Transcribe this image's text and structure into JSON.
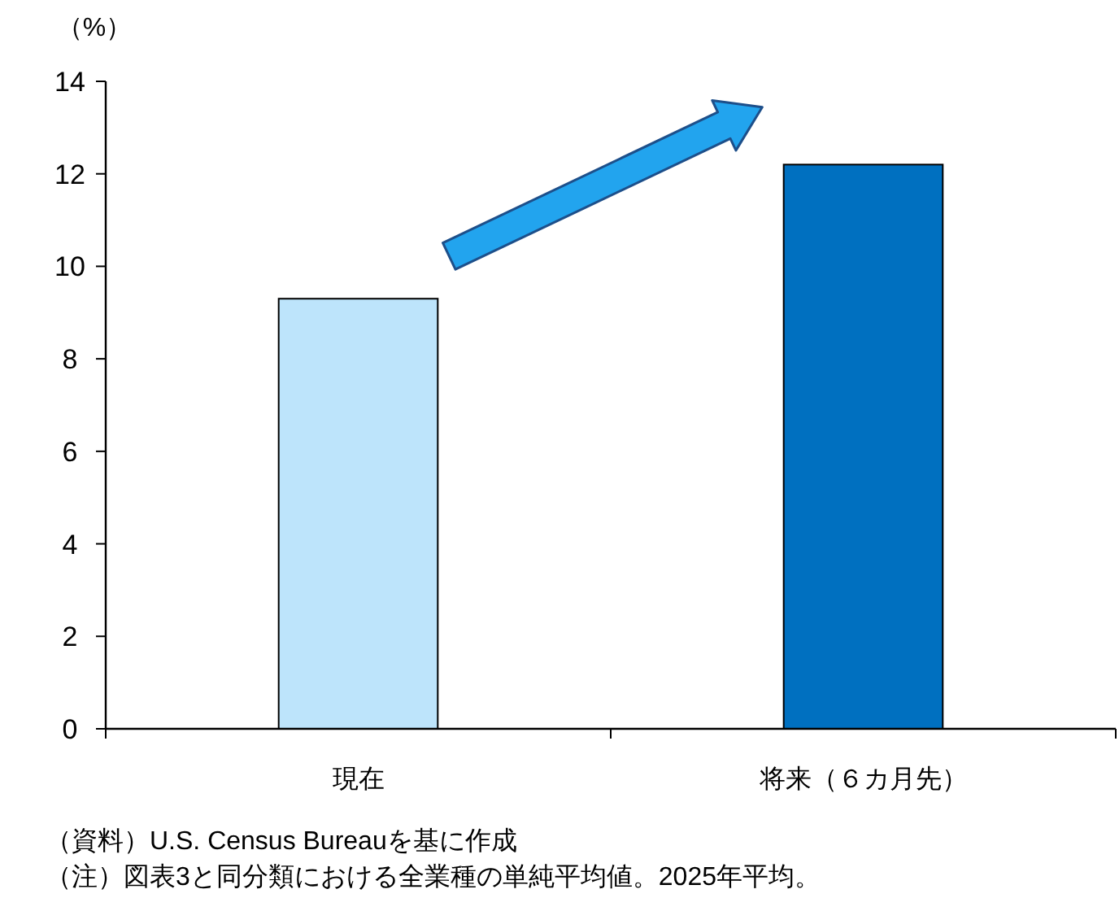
{
  "chart_data": {
    "type": "bar",
    "ylabel": "（%）",
    "categories": [
      "現在",
      "将来（６カ月先）"
    ],
    "values": [
      9.3,
      12.2
    ],
    "colors": [
      "#bde4fb",
      "#0070c0"
    ],
    "ylim": [
      0,
      14
    ],
    "yticks": [
      0,
      2,
      4,
      6,
      8,
      10,
      12,
      14
    ],
    "annotations": [
      "（資料）U.S. Census Bureauを基に作成",
      "（注）図表3と同分類における全業種の単純平均値。2025年平均。"
    ]
  }
}
